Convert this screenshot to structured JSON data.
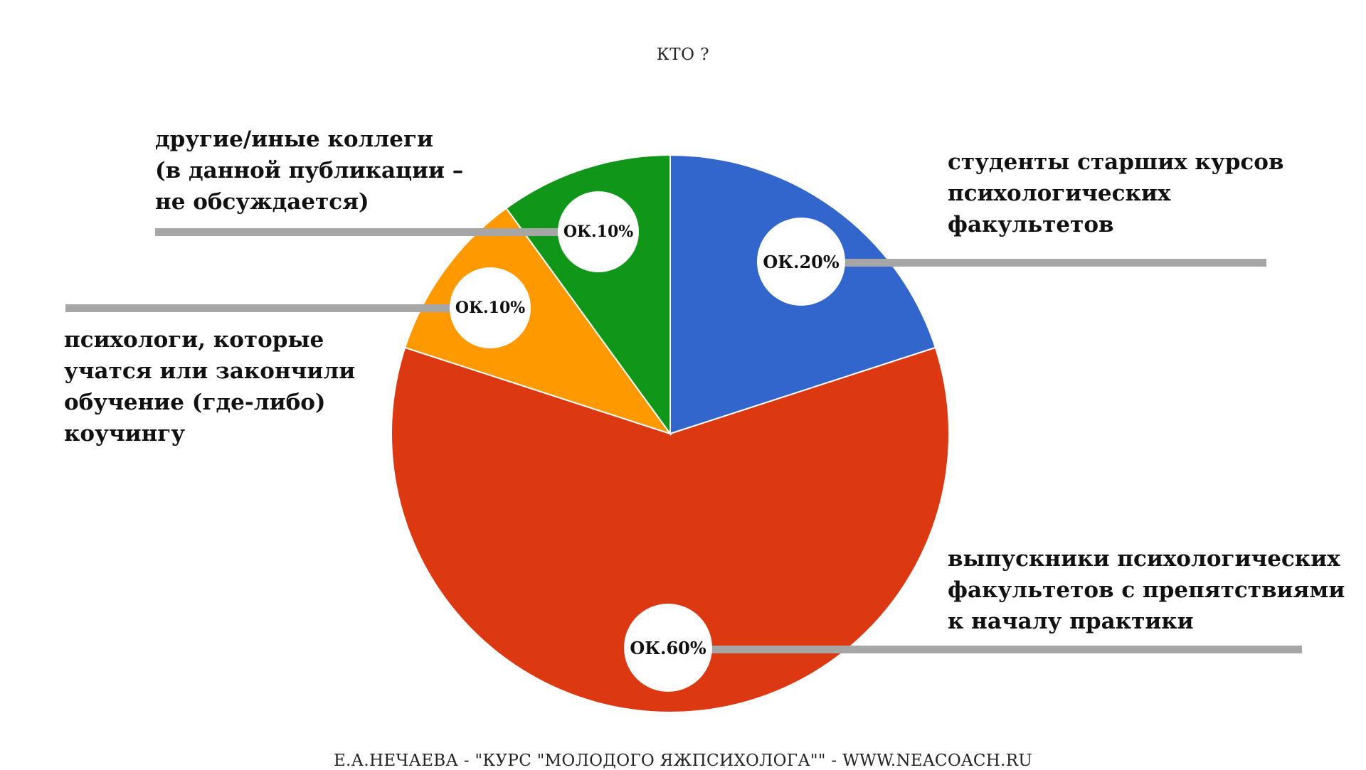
{
  "chart_data": {
    "type": "pie",
    "title": "КТО ?",
    "slices": [
      {
        "label": "студенты старших курсов психологических факультетов",
        "value": 20,
        "value_label": "ОК.20%",
        "color": "#3366cc"
      },
      {
        "label": "выпускники психологических факультетов с препятствиями к началу практики",
        "value": 60,
        "value_label": "ОК.60%",
        "color": "#dc3912"
      },
      {
        "label": "психологи, которые учатся или закончили обучение (где-либо) коучингу",
        "value": 10,
        "value_label": "ОК.10%",
        "color": "#ff9900"
      },
      {
        "label": "другие/иные коллеги (в данной публикации – не обсуждается)",
        "value": 10,
        "value_label": "ОК.10%",
        "color": "#109618"
      }
    ],
    "start_angle_deg": 0,
    "direction": "clockwise"
  },
  "callouts": {
    "students": [
      "студенты старших курсов",
      "психологических",
      "факультетов"
    ],
    "graduates": [
      "выпускники психологических",
      "факультетов с препятствиями",
      "к началу практики"
    ],
    "coaching": [
      "психологи, которые",
      "учатся или закончили",
      "обучение (где-либо)",
      "коучингу"
    ],
    "others": [
      "другие/иные коллеги",
      "(в данной публикации –",
      "не обсуждается)"
    ]
  },
  "leader_color": "#a6a6a6",
  "footer": "Е.А.НЕЧАЕВА - \"КУРС \"МОЛОДОГО ЯЖПСИХОЛОГА\"\" - WWW.NEACOACH.RU"
}
